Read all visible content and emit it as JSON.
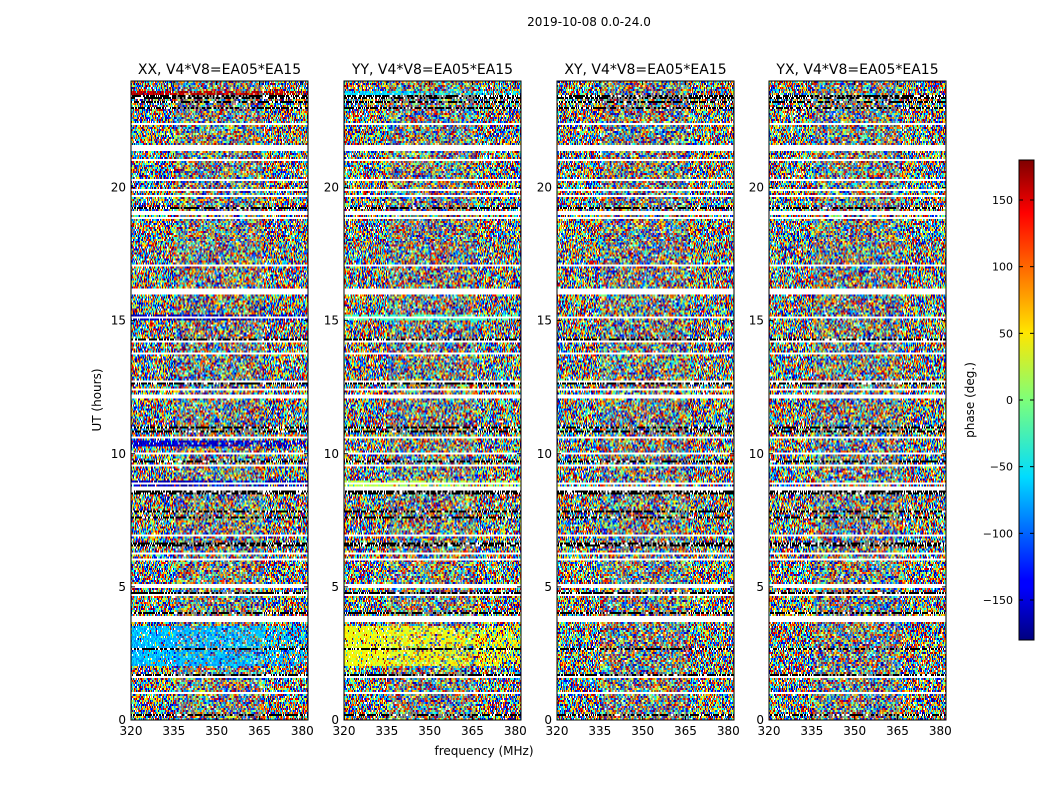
{
  "chart_data": {
    "type": "heatmap",
    "suptitle": "2019-10-08 0.0-24.0",
    "panels": [
      {
        "title": "XX, V4*V8=EA05*EA15",
        "polarization": "XX"
      },
      {
        "title": "YY, V4*V8=EA05*EA15",
        "polarization": "YY"
      },
      {
        "title": "XY, V4*V8=EA05*EA15",
        "polarization": "XY"
      },
      {
        "title": "YX, V4*V8=EA05*EA15",
        "polarization": "YX"
      }
    ],
    "xlabel": "frequency (MHz)",
    "ylabel": "UT (hours)",
    "xlim": [
      320,
      382
    ],
    "ylim": [
      0,
      24
    ],
    "xticks": [
      320,
      335,
      350,
      365,
      380
    ],
    "xtick_labels": [
      "320",
      "335",
      "350",
      "365",
      "380"
    ],
    "yticks": [
      0,
      5,
      10,
      15,
      20
    ],
    "ytick_labels": [
      "0",
      "5",
      "10",
      "15",
      "20"
    ],
    "colorbar": {
      "label": "phase (deg.)",
      "range": [
        -180,
        180
      ],
      "ticks": [
        -150,
        -100,
        -50,
        0,
        50,
        100,
        150
      ],
      "tick_labels": [
        "−150",
        "−100",
        "−50",
        "0",
        "50",
        "100",
        "150"
      ],
      "colormap": "jet"
    },
    "blank_time_ranges_hours": [
      [
        3.7,
        3.9
      ],
      [
        5.0,
        5.1
      ],
      [
        8.6,
        8.7
      ],
      [
        12.1,
        12.2
      ],
      [
        16.0,
        16.2
      ],
      [
        19.0,
        19.1
      ],
      [
        21.4,
        21.6
      ]
    ],
    "coherent_phase_features": [
      {
        "panel": "XX",
        "ut_range": [
          2.0,
          3.5
        ],
        "phase_deg": -70
      },
      {
        "panel": "XX",
        "ut_range": [
          8.7,
          9.0
        ],
        "phase_deg": -160
      },
      {
        "panel": "XX",
        "ut_range": [
          10.3,
          10.5
        ],
        "phase_deg": -150
      },
      {
        "panel": "XX",
        "ut_range": [
          15.0,
          15.2
        ],
        "phase_deg": -160
      },
      {
        "panel": "XX",
        "ut_range": [
          23.3,
          23.6
        ],
        "phase_deg": 160
      },
      {
        "panel": "YY",
        "ut_range": [
          2.0,
          3.5
        ],
        "phase_deg": 40
      },
      {
        "panel": "YY",
        "ut_range": [
          8.7,
          9.0
        ],
        "phase_deg": 20
      },
      {
        "panel": "YY",
        "ut_range": [
          15.0,
          15.2
        ],
        "phase_deg": -20
      },
      {
        "panel": "YY",
        "ut_range": [
          23.3,
          23.6
        ],
        "phase_deg": -60
      }
    ]
  }
}
